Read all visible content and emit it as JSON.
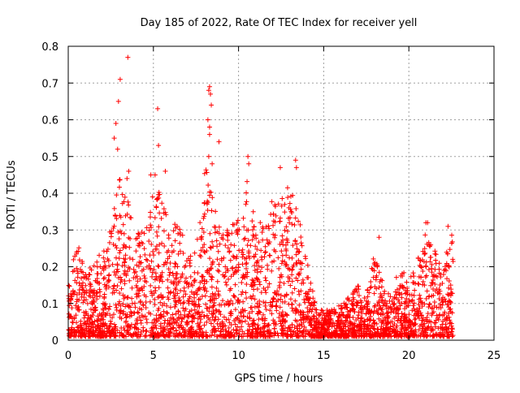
{
  "chart_data": {
    "type": "scatter",
    "title": "Day 185 of 2022, Rate Of TEC Index for receiver yell",
    "xlabel": "GPS time / hours",
    "ylabel": "ROTI / TECUs",
    "xlim": [
      0,
      25
    ],
    "ylim": [
      0,
      0.8
    ],
    "xticks": [
      "0",
      "5",
      "10",
      "15",
      "20",
      "25"
    ],
    "xtick_values": [
      0,
      5,
      10,
      15,
      20,
      25
    ],
    "yticks": [
      "0",
      "0.1",
      "0.2",
      "0.3",
      "0.4",
      "0.5",
      "0.6",
      "0.7",
      "0.8"
    ],
    "ytick_values": [
      0,
      0.1,
      0.2,
      0.3,
      0.4,
      0.5,
      0.6,
      0.7,
      0.8
    ],
    "grid": true,
    "marker": "+",
    "color": "#ff0000",
    "envelope": {
      "description": "approximate upper envelope of the ROTI scatter (hours, TECU)",
      "x": [
        0.0,
        0.5,
        1.0,
        1.5,
        2.0,
        2.5,
        3.0,
        3.5,
        4.0,
        4.5,
        5.0,
        5.5,
        6.0,
        6.5,
        7.0,
        7.5,
        8.0,
        8.5,
        9.0,
        9.5,
        10.0,
        10.5,
        11.0,
        11.5,
        12.0,
        12.5,
        13.0,
        13.5,
        14.0,
        14.5,
        15.0,
        15.5,
        16.0,
        16.5,
        17.0,
        17.5,
        18.0,
        18.5,
        19.0,
        19.5,
        20.0,
        20.5,
        21.0,
        21.5,
        22.0,
        22.5
      ],
      "y": [
        0.15,
        0.28,
        0.18,
        0.22,
        0.25,
        0.3,
        0.45,
        0.38,
        0.3,
        0.3,
        0.42,
        0.4,
        0.32,
        0.35,
        0.22,
        0.25,
        0.5,
        0.38,
        0.3,
        0.3,
        0.4,
        0.45,
        0.35,
        0.3,
        0.4,
        0.38,
        0.45,
        0.38,
        0.22,
        0.1,
        0.08,
        0.09,
        0.1,
        0.12,
        0.15,
        0.12,
        0.25,
        0.15,
        0.12,
        0.22,
        0.15,
        0.25,
        0.3,
        0.25,
        0.2,
        0.3
      ]
    },
    "outliers": {
      "x": [
        2.7,
        2.8,
        2.95,
        3.05,
        2.9,
        3.5,
        3.45,
        3.55,
        5.25,
        5.3,
        5.1,
        4.85,
        5.7,
        8.25,
        8.3,
        8.35,
        8.2,
        8.4,
        8.3,
        8.3,
        8.85,
        8.25,
        8.45,
        10.55,
        10.6,
        12.45,
        13.35,
        13.4,
        18.25,
        21.0,
        21.1,
        22.3
      ],
      "y": [
        0.55,
        0.59,
        0.65,
        0.71,
        0.52,
        0.77,
        0.44,
        0.46,
        0.63,
        0.53,
        0.45,
        0.45,
        0.46,
        0.68,
        0.69,
        0.67,
        0.6,
        0.64,
        0.56,
        0.58,
        0.54,
        0.5,
        0.48,
        0.5,
        0.48,
        0.47,
        0.49,
        0.47,
        0.28,
        0.32,
        0.32,
        0.31
      ]
    },
    "data_span_hours": [
      0,
      22.6
    ]
  }
}
